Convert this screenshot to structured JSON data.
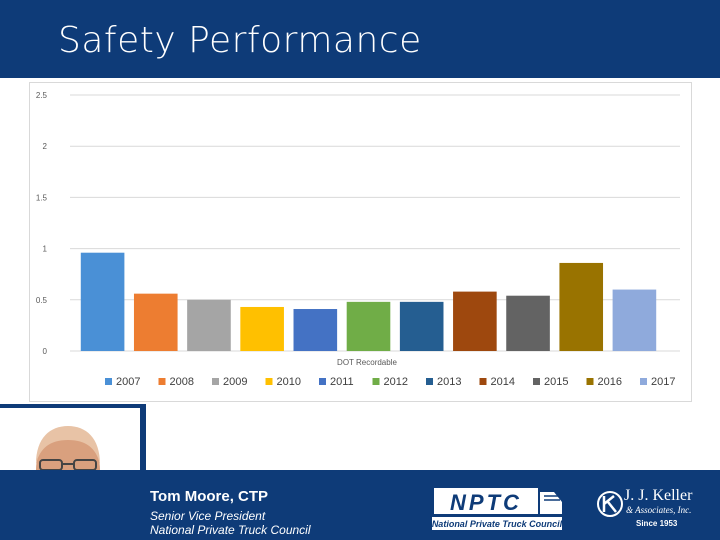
{
  "slide": {
    "title": "Safety Performance"
  },
  "chart_data": {
    "type": "bar",
    "title": "",
    "xlabel": "DOT Recordable",
    "ylabel": "",
    "ylim": [
      0,
      2.5
    ],
    "yticks": [
      "0",
      "0.5",
      "1",
      "1.5",
      "2",
      "2.5"
    ],
    "grid": true,
    "legend": "bottom",
    "categories": [
      "DOT Recordable"
    ],
    "series": [
      {
        "name": "2007",
        "values": [
          0.96
        ],
        "color": "#4a90d6"
      },
      {
        "name": "2008",
        "values": [
          0.56
        ],
        "color": "#ed7d31"
      },
      {
        "name": "2009",
        "values": [
          0.5
        ],
        "color": "#a5a5a5"
      },
      {
        "name": "2010",
        "values": [
          0.43
        ],
        "color": "#ffc000"
      },
      {
        "name": "2011",
        "values": [
          0.41
        ],
        "color": "#4472c4"
      },
      {
        "name": "2012",
        "values": [
          0.48
        ],
        "color": "#70ad47"
      },
      {
        "name": "2013",
        "values": [
          0.48
        ],
        "color": "#255e91"
      },
      {
        "name": "2014",
        "values": [
          0.58
        ],
        "color": "#9e480e"
      },
      {
        "name": "2015",
        "values": [
          0.54
        ],
        "color": "#636363"
      },
      {
        "name": "2016",
        "values": [
          0.86
        ],
        "color": "#997300"
      },
      {
        "name": "2017",
        "values": [
          0.6
        ],
        "color": "#8faadc"
      }
    ]
  },
  "presenter": {
    "name": "Tom Moore, CTP",
    "role": "Senior Vice President",
    "org": "National Private Truck Council"
  },
  "logos": {
    "nptc": {
      "abbr": "NPTC",
      "tagline": "National Private Truck Council"
    },
    "jjk": {
      "name": "J. J. Keller",
      "sub": "& Associates, Inc.",
      "since": "Since 1953"
    }
  }
}
